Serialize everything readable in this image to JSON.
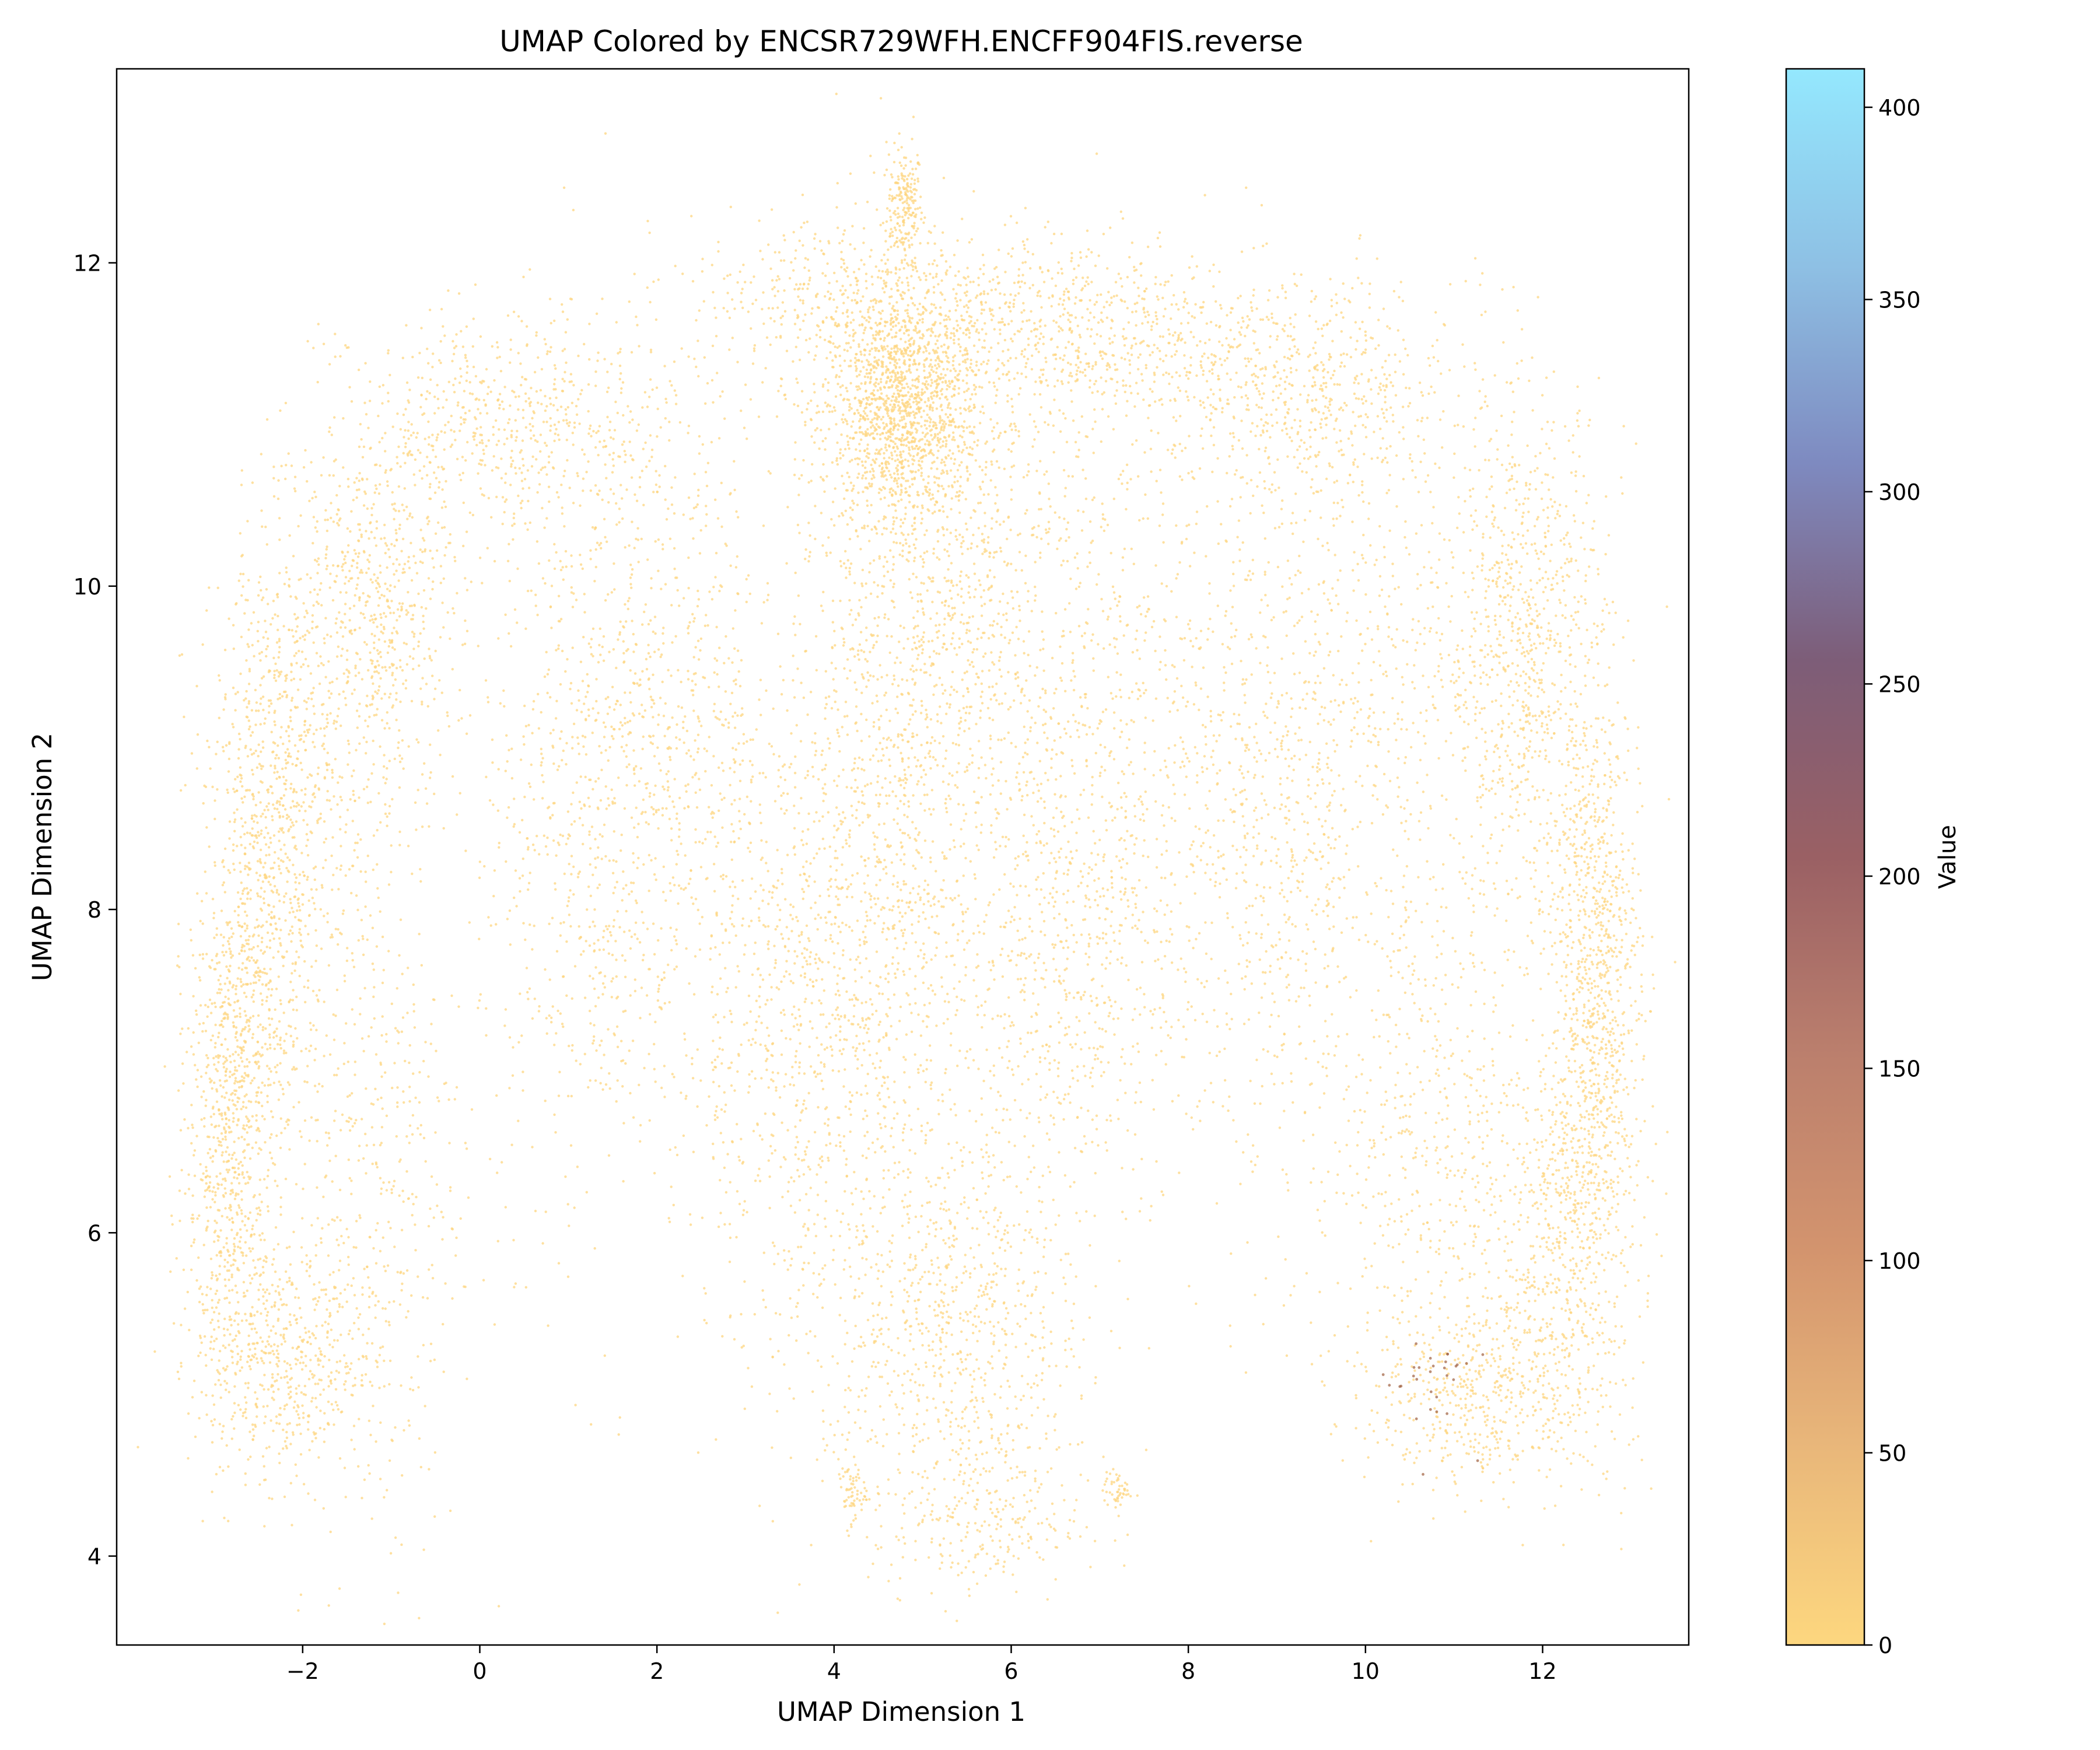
{
  "chart_data": {
    "type": "scatter",
    "title": "UMAP Colored by ENCSR729WFH.ENCFF904FIS.reverse",
    "xlabel": "UMAP Dimension 1",
    "ylabel": "UMAP Dimension 2",
    "xlim": [
      -4.1,
      13.65
    ],
    "ylim": [
      3.45,
      13.2
    ],
    "xticks": [
      -2,
      0,
      2,
      4,
      6,
      8,
      10,
      12
    ],
    "xtick_labels": [
      "−2",
      "0",
      "2",
      "4",
      "6",
      "8",
      "10",
      "12"
    ],
    "yticks": [
      4,
      6,
      8,
      10,
      12
    ],
    "ytick_labels": [
      "4",
      "6",
      "8",
      "10",
      "12"
    ],
    "grid": false,
    "legend": "none",
    "point_color": "#fdd580",
    "high_value_color": "#a0603f",
    "colorbar": {
      "label": "Value",
      "range": [
        0,
        410
      ],
      "ticks": [
        0,
        50,
        100,
        150,
        200,
        250,
        300,
        350,
        400
      ],
      "tick_labels": [
        "0",
        "50",
        "100",
        "150",
        "200",
        "250",
        "300",
        "350",
        "400"
      ],
      "colors": [
        "#fdd77f",
        "#e9b77a",
        "#d3946e",
        "#bb7f6d",
        "#9a6064",
        "#7d5d78",
        "#7e8ac0",
        "#8ec0e4",
        "#94e8fe"
      ]
    },
    "regions": [
      {
        "x": 4.8,
        "y": 12.35,
        "sx": 0.1,
        "sy": 0.18,
        "n": 200
      },
      {
        "x": 4.75,
        "y": 11.1,
        "sx": 0.45,
        "sy": 0.35,
        "n": 1400
      },
      {
        "x": 4.1,
        "y": 11.8,
        "sx": 0.9,
        "sy": 0.25,
        "n": 400
      },
      {
        "x": 6.6,
        "y": 11.6,
        "sx": 1.0,
        "sy": 0.3,
        "n": 700
      },
      {
        "x": 9.2,
        "y": 11.2,
        "sx": 0.9,
        "sy": 0.35,
        "n": 600
      },
      {
        "x": 0.4,
        "y": 11.0,
        "sx": 0.9,
        "sy": 0.35,
        "n": 600
      },
      {
        "x": -1.2,
        "y": 9.8,
        "sx": 0.5,
        "sy": 0.6,
        "n": 700
      },
      {
        "x": -2.3,
        "y": 8.5,
        "sx": 0.35,
        "sy": 0.9,
        "n": 900
      },
      {
        "x": -2.8,
        "y": 6.7,
        "sx": 0.25,
        "sy": 0.9,
        "n": 900
      },
      {
        "x": -2.2,
        "y": 5.2,
        "sx": 0.5,
        "sy": 0.35,
        "n": 500
      },
      {
        "x": -1.2,
        "y": 6.5,
        "sx": 0.5,
        "sy": 1.3,
        "n": 500
      },
      {
        "x": 1.2,
        "y": 8.5,
        "sx": 0.6,
        "sy": 1.2,
        "n": 700
      },
      {
        "x": 2.2,
        "y": 9.3,
        "sx": 0.6,
        "sy": 1.0,
        "n": 500
      },
      {
        "x": 3.6,
        "y": 7.3,
        "sx": 0.7,
        "sy": 1.1,
        "n": 900
      },
      {
        "x": 4.7,
        "y": 8.8,
        "sx": 0.6,
        "sy": 1.5,
        "n": 1100
      },
      {
        "x": 5.6,
        "y": 10.0,
        "sx": 0.6,
        "sy": 0.8,
        "n": 600
      },
      {
        "x": 5.4,
        "y": 5.4,
        "sx": 0.7,
        "sy": 0.55,
        "n": 700
      },
      {
        "x": 5.6,
        "y": 4.2,
        "sx": 0.6,
        "sy": 0.25,
        "n": 250
      },
      {
        "x": 6.5,
        "y": 7.6,
        "sx": 0.7,
        "sy": 0.8,
        "n": 600
      },
      {
        "x": 7.2,
        "y": 9.2,
        "sx": 0.6,
        "sy": 1.0,
        "n": 500
      },
      {
        "x": 8.9,
        "y": 8.5,
        "sx": 0.6,
        "sy": 1.2,
        "n": 700
      },
      {
        "x": 10.4,
        "y": 9.4,
        "sx": 0.7,
        "sy": 1.0,
        "n": 500
      },
      {
        "x": 11.8,
        "y": 9.6,
        "sx": 0.45,
        "sy": 0.8,
        "n": 800
      },
      {
        "x": 12.6,
        "y": 7.6,
        "sx": 0.25,
        "sy": 0.9,
        "n": 900
      },
      {
        "x": 12.3,
        "y": 6.0,
        "sx": 0.4,
        "sy": 0.7,
        "n": 600
      },
      {
        "x": 11.3,
        "y": 5.0,
        "sx": 0.6,
        "sy": 0.3,
        "n": 500
      },
      {
        "x": 10.8,
        "y": 6.5,
        "sx": 0.7,
        "sy": 0.8,
        "n": 500
      },
      {
        "x": 4.2,
        "y": 4.4,
        "sx": 0.08,
        "sy": 0.08,
        "n": 60
      },
      {
        "x": 7.2,
        "y": 4.4,
        "sx": 0.08,
        "sy": 0.06,
        "n": 50
      }
    ]
  }
}
